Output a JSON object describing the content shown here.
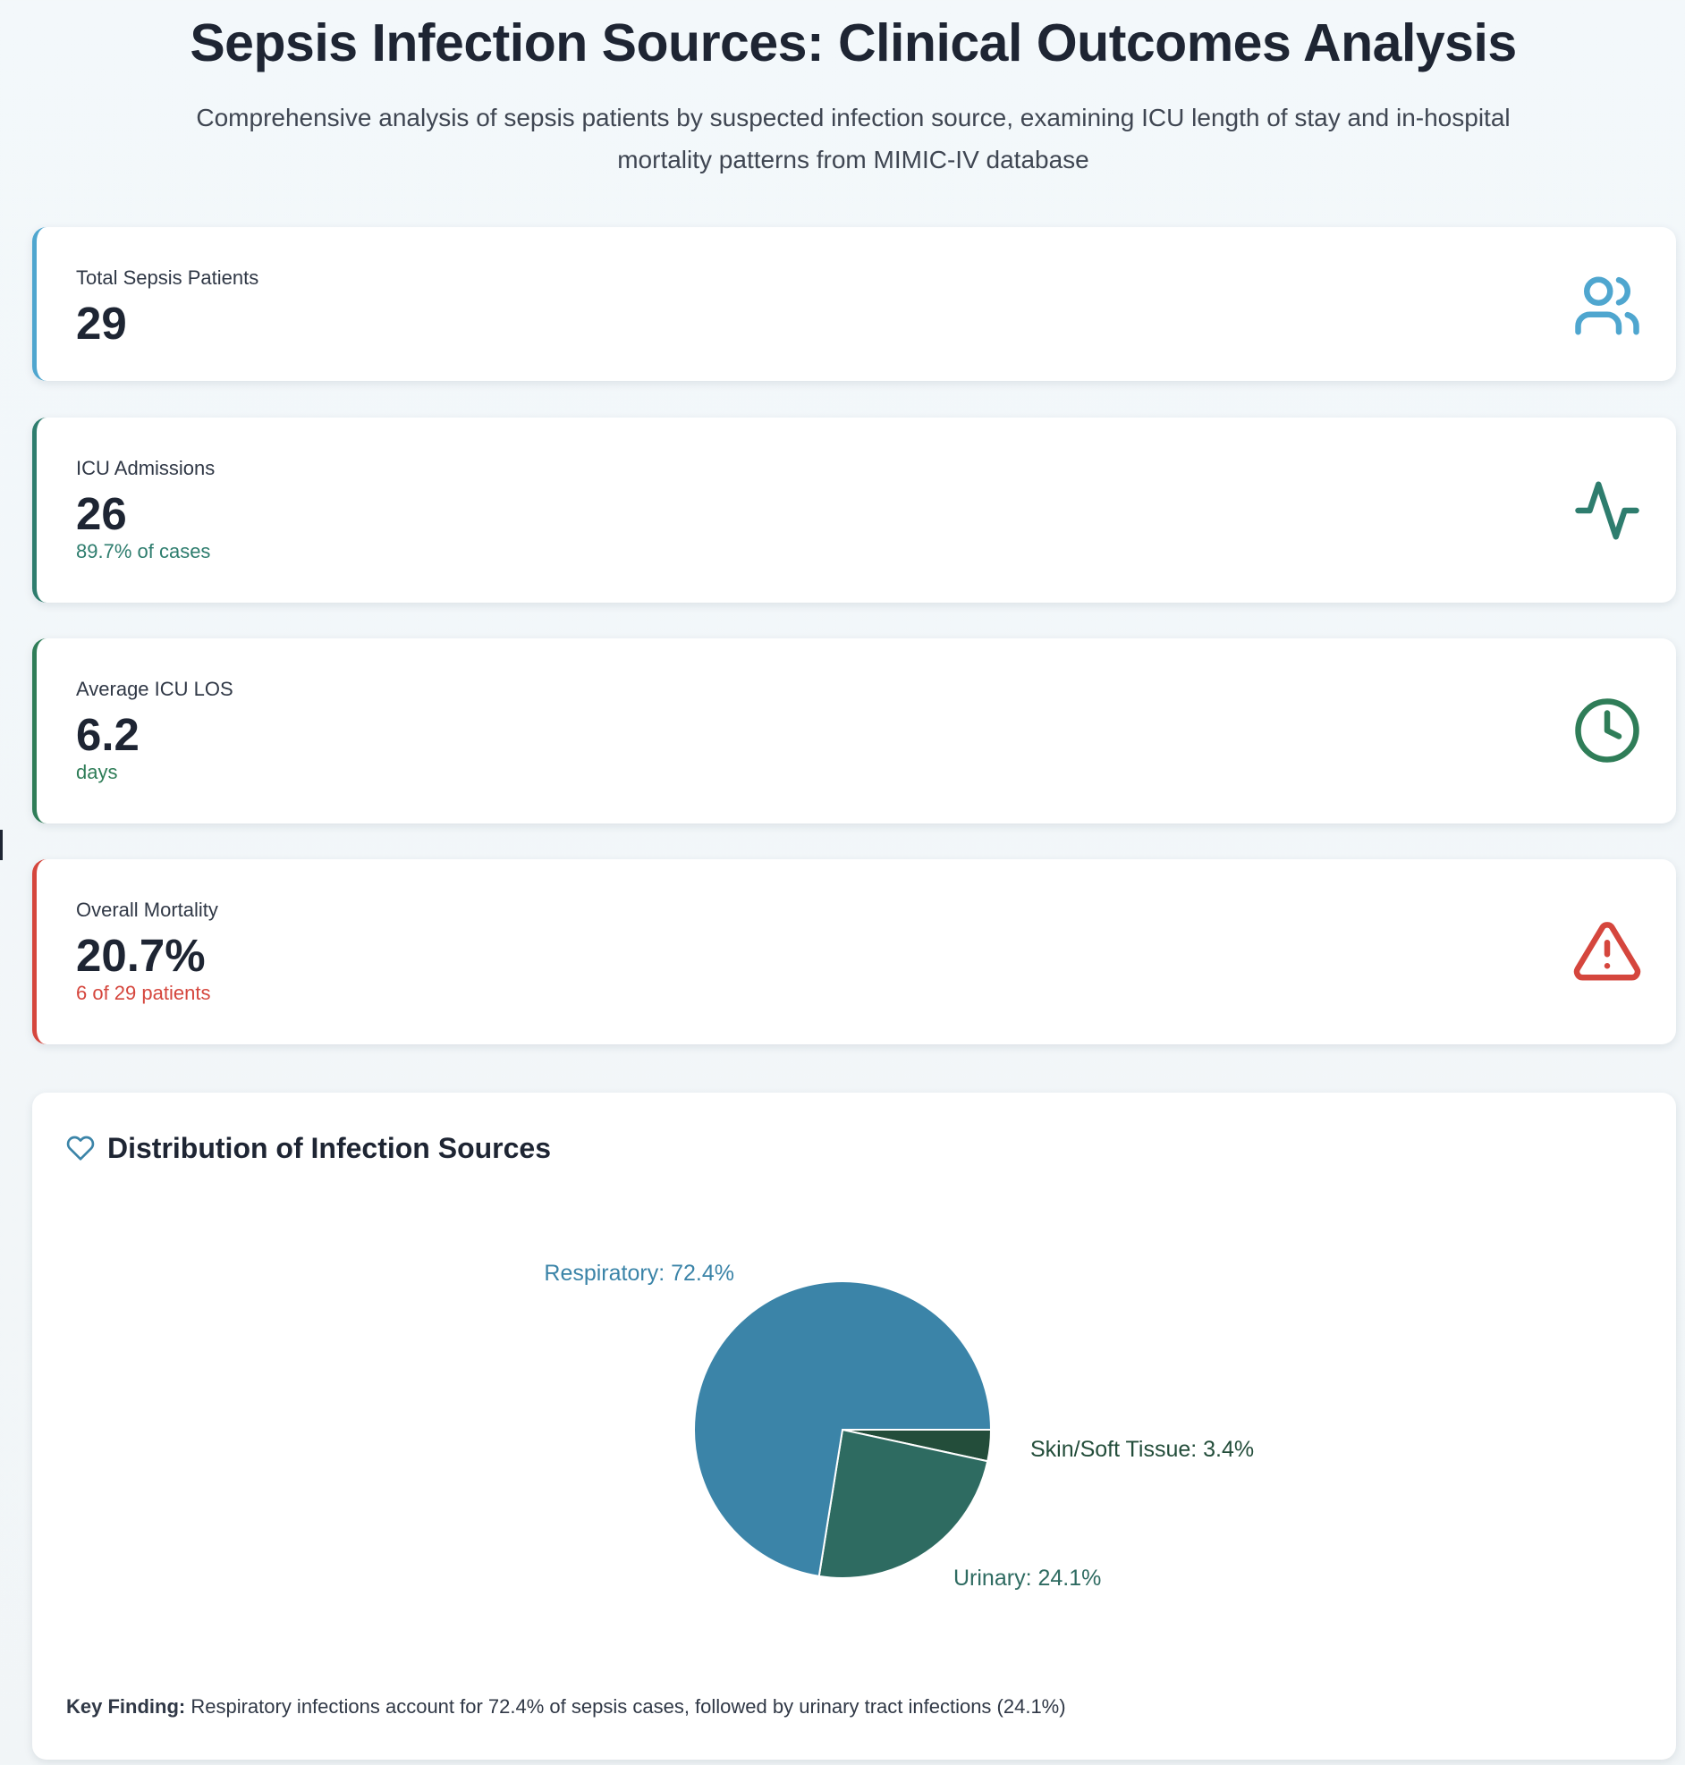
{
  "header": {
    "title": "Sepsis Infection Sources: Clinical Outcomes Analysis",
    "subtitle": "Comprehensive analysis of sepsis patients by suspected infection source, examining ICU length of stay and in-hospital mortality patterns from MIMIC-IV database"
  },
  "stats": {
    "total": {
      "label": "Total Sepsis Patients",
      "value": "29",
      "icon": "users-icon",
      "accent": "#4fa6cf"
    },
    "icu": {
      "label": "ICU Admissions",
      "value": "26",
      "note": "89.7% of cases",
      "icon": "activity-icon",
      "accent": "#2e7d6e"
    },
    "los": {
      "label": "Average ICU LOS",
      "value": "6.2",
      "note": "days",
      "icon": "clock-icon",
      "accent": "#2f7d58"
    },
    "mortality": {
      "label": "Overall Mortality",
      "value": "20.7%",
      "note": "6 of 29 patients",
      "icon": "alert-triangle-icon",
      "accent": "#d5463d"
    }
  },
  "chart_section": {
    "title": "Distribution of Infection Sources",
    "icon": "heart-icon",
    "key_finding_label": "Key Finding:",
    "key_finding_text": " Respiratory infections account for 72.4% of sepsis cases, followed by urinary tract infections (24.1%)"
  },
  "chart_data": {
    "type": "pie",
    "categories": [
      "Respiratory",
      "Urinary",
      "Skin/Soft Tissue"
    ],
    "values": [
      72.4,
      24.1,
      3.4
    ],
    "labels": [
      "Respiratory: 72.4%",
      "Urinary: 24.1%",
      "Skin/Soft Tissue: 3.4%"
    ],
    "colors": [
      "#3b84a8",
      "#2e6b61",
      "#234d3a"
    ],
    "label_colors": [
      "#3b84a8",
      "#2e6b61",
      "#234d3a"
    ]
  }
}
